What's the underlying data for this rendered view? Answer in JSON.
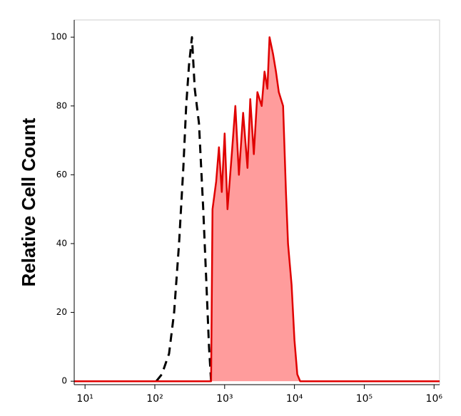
{
  "chart_data": {
    "type": "histogram-overlay",
    "y_label": "Relative Cell Count",
    "x_scale": "log",
    "xlim": [
      7,
      1200000
    ],
    "ylim": [
      -1,
      105
    ],
    "xticks": [
      {
        "value": 10,
        "label": "10¹"
      },
      {
        "value": 100,
        "label": "10²"
      },
      {
        "value": 1000,
        "label": "10³"
      },
      {
        "value": 10000,
        "label": "10⁴"
      },
      {
        "value": 100000,
        "label": "10⁵"
      },
      {
        "value": 1000000,
        "label": "10⁶"
      }
    ],
    "yticks": [
      0,
      20,
      40,
      60,
      80,
      100
    ],
    "series": [
      {
        "color": "#000000",
        "dashed": true,
        "filled": false,
        "x": [
          105,
          126,
          160,
          189,
          222,
          256,
          281,
          309,
          340,
          373,
          429,
          494,
          543,
          597,
          640
        ],
        "values": [
          0,
          2,
          8,
          20,
          40,
          62,
          80,
          92,
          100,
          85,
          75,
          50,
          30,
          10,
          0
        ]
      },
      {
        "color": "#e00000",
        "fill": "#ff9c9c",
        "dashed": false,
        "filled": true,
        "x": [
          7,
          640,
          671,
          755,
          829,
          910,
          1000,
          1099,
          1265,
          1422,
          1600,
          1842,
          2122,
          2330,
          2620,
          2945,
          3394,
          3725,
          4093,
          4395,
          4944,
          5433,
          5970,
          6870,
          7550,
          8090,
          9100,
          10000,
          10990,
          12080,
          1200000
        ],
        "values": [
          0,
          0,
          50,
          58,
          68,
          55,
          72,
          50,
          66,
          80,
          60,
          78,
          62,
          82,
          66,
          84,
          80,
          90,
          85,
          100,
          95,
          90,
          84,
          80,
          55,
          40,
          28,
          12,
          2,
          0,
          0
        ]
      }
    ]
  }
}
